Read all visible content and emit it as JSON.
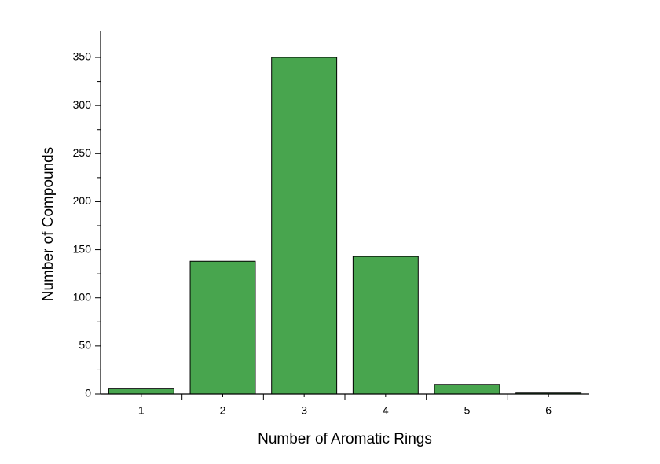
{
  "chart_data": {
    "type": "bar",
    "x_label": "Number of Aromatic Rings",
    "y_label": "Number of Compounds",
    "categories": [
      "1",
      "2",
      "3",
      "4",
      "5",
      "6"
    ],
    "values": [
      6,
      138,
      350,
      143,
      10,
      1
    ],
    "color": "#48a54e",
    "ylim": [
      0,
      377
    ],
    "yticks": [
      0,
      50,
      100,
      150,
      200,
      250,
      300,
      350
    ]
  }
}
